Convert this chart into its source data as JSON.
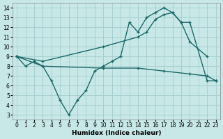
{
  "bg_color": "#c8e8e8",
  "grid_color": "#a8d0d0",
  "line_color": "#1a6868",
  "xlabel": "Humidex (Indice chaleur)",
  "xlim": [
    -0.5,
    23.5
  ],
  "ylim": [
    2.5,
    14.5
  ],
  "xticks": [
    0,
    1,
    2,
    3,
    4,
    5,
    6,
    7,
    8,
    9,
    10,
    11,
    12,
    13,
    14,
    15,
    16,
    17,
    18,
    19,
    20,
    21,
    22,
    23
  ],
  "yticks": [
    3,
    4,
    5,
    6,
    7,
    8,
    9,
    10,
    11,
    12,
    13,
    14
  ],
  "s1x": [
    0,
    1,
    2,
    3,
    4,
    5,
    6,
    7,
    8,
    9,
    10,
    11,
    12,
    13,
    14,
    15,
    16,
    17,
    18,
    19,
    20,
    22
  ],
  "s1y": [
    9,
    8,
    8.5,
    8,
    6.5,
    4.5,
    3.0,
    4.5,
    5.5,
    7.5,
    8.0,
    8.5,
    9.0,
    12.5,
    11.5,
    13.0,
    13.5,
    14.0,
    13.5,
    12.5,
    10.5,
    9.0
  ],
  "s2x": [
    0,
    3,
    10,
    14,
    17,
    20,
    22,
    23
  ],
  "s2y": [
    9.0,
    8.0,
    7.8,
    7.8,
    7.5,
    7.2,
    7.0,
    6.5
  ],
  "s3x": [
    0,
    3,
    10,
    14,
    15,
    16,
    17,
    18,
    19,
    20,
    22,
    23
  ],
  "s3y": [
    9.0,
    8.5,
    10.0,
    11.0,
    11.5,
    12.8,
    13.3,
    13.5,
    12.5,
    12.5,
    6.5,
    6.5
  ]
}
